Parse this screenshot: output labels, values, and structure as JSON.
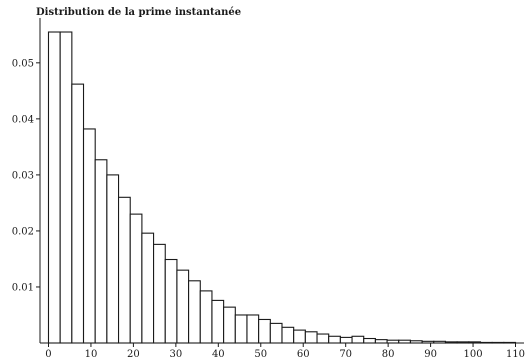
{
  "chart_data": {
    "type": "bar",
    "title": "Distribution de la prime instantanée",
    "xlabel": "",
    "ylabel": "",
    "bin_width": 2.75,
    "x_start": 0,
    "values": [
      0.0555,
      0.0555,
      0.0462,
      0.0382,
      0.0327,
      0.03,
      0.026,
      0.023,
      0.0196,
      0.0176,
      0.0149,
      0.013,
      0.0111,
      0.0093,
      0.0076,
      0.0064,
      0.005,
      0.005,
      0.0042,
      0.0035,
      0.0028,
      0.0023,
      0.002,
      0.0016,
      0.0012,
      0.001,
      0.0012,
      0.0008,
      0.0006,
      0.0005,
      0.0005,
      0.0004,
      0.0003,
      0.0003,
      0.0002,
      0.0002,
      0.0002,
      0.0001,
      0.0001,
      0.0001
    ],
    "xlim": [
      -2,
      112
    ],
    "ylim": [
      0,
      0.058
    ],
    "x_ticks": [
      0,
      10,
      20,
      30,
      40,
      50,
      60,
      70,
      80,
      90,
      100,
      110
    ],
    "x_tick_labels": [
      "0",
      "10",
      "20",
      "30",
      "40",
      "50",
      "60",
      "70",
      "80",
      "90",
      "100",
      "110"
    ],
    "y_ticks": [
      0.01,
      0.02,
      0.03,
      0.04,
      0.05
    ],
    "y_tick_labels": [
      "0.01",
      "0.02",
      "0.03",
      "0.04",
      "0.05"
    ],
    "grid": false,
    "legend": "none"
  }
}
